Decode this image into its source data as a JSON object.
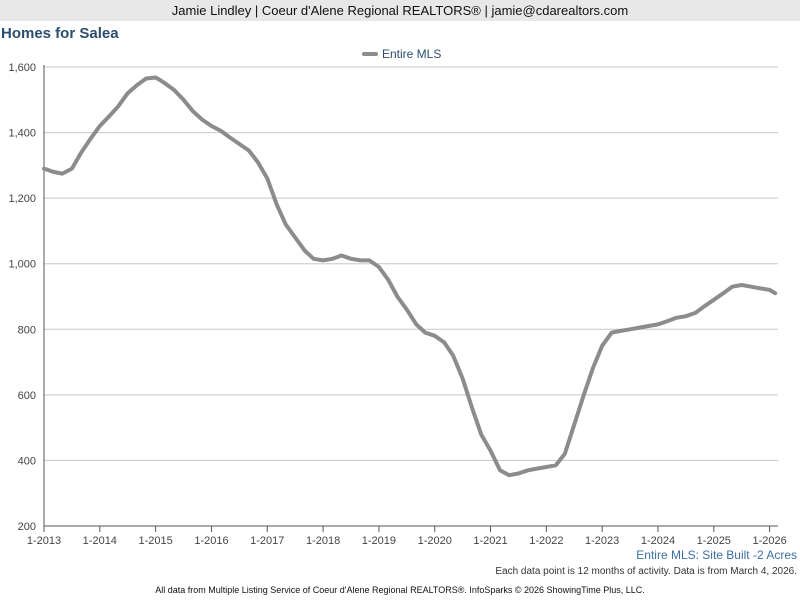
{
  "header": {
    "text": "Jamie Lindley | Coeur d'Alene Regional REALTORS® | jamie@cdarealtors.com"
  },
  "chart_data": {
    "type": "line",
    "title": "Homes for Salea",
    "xlabel": "",
    "ylabel": "",
    "ylim": [
      200,
      1600
    ],
    "xlim": [
      2013.0,
      2026.15
    ],
    "x_ticks": [
      2013,
      2014,
      2015,
      2016,
      2017,
      2018,
      2019,
      2020,
      2021,
      2022,
      2023,
      2024,
      2025,
      2026
    ],
    "x_tick_labels": [
      "1-2013",
      "1-2014",
      "1-2015",
      "1-2016",
      "1-2017",
      "1-2018",
      "1-2019",
      "1-2020",
      "1-2021",
      "1-2022",
      "1-2023",
      "1-2024",
      "1-2025",
      "1-2026"
    ],
    "y_ticks": [
      200,
      400,
      600,
      800,
      1000,
      1200,
      1400,
      1600
    ],
    "y_tick_labels": [
      "200",
      "400",
      "600",
      "800",
      "1,000",
      "1,200",
      "1,400",
      "1,600"
    ],
    "grid": true,
    "legend_position": "top-center",
    "series": [
      {
        "name": "Entire MLS",
        "color": "#8c8c8c",
        "x": [
          2013.0,
          2013.17,
          2013.33,
          2013.5,
          2013.67,
          2013.83,
          2014.0,
          2014.17,
          2014.33,
          2014.5,
          2014.67,
          2014.83,
          2015.0,
          2015.08,
          2015.17,
          2015.33,
          2015.5,
          2015.67,
          2015.83,
          2016.0,
          2016.17,
          2016.33,
          2016.5,
          2016.67,
          2016.83,
          2017.0,
          2017.17,
          2017.33,
          2017.5,
          2017.67,
          2017.83,
          2018.0,
          2018.17,
          2018.33,
          2018.5,
          2018.67,
          2018.83,
          2019.0,
          2019.17,
          2019.33,
          2019.5,
          2019.67,
          2019.83,
          2020.0,
          2020.17,
          2020.33,
          2020.5,
          2020.67,
          2020.83,
          2021.0,
          2021.17,
          2021.33,
          2021.5,
          2021.67,
          2021.83,
          2022.0,
          2022.17,
          2022.33,
          2022.5,
          2022.67,
          2022.83,
          2023.0,
          2023.17,
          2023.33,
          2023.5,
          2023.67,
          2023.83,
          2024.0,
          2024.17,
          2024.33,
          2024.5,
          2024.67,
          2024.83,
          2025.0,
          2025.17,
          2025.33,
          2025.5,
          2025.67,
          2025.83,
          2026.0,
          2026.1
        ],
        "values": [
          1290,
          1280,
          1275,
          1290,
          1340,
          1380,
          1420,
          1450,
          1480,
          1520,
          1545,
          1565,
          1568,
          1560,
          1550,
          1530,
          1500,
          1465,
          1440,
          1420,
          1405,
          1385,
          1365,
          1345,
          1310,
          1260,
          1180,
          1120,
          1080,
          1040,
          1015,
          1010,
          1015,
          1025,
          1015,
          1010,
          1010,
          990,
          950,
          900,
          860,
          815,
          790,
          780,
          760,
          720,
          650,
          560,
          480,
          430,
          370,
          355,
          360,
          370,
          375,
          380,
          385,
          420,
          510,
          600,
          680,
          750,
          790,
          795,
          800,
          805,
          810,
          815,
          825,
          835,
          840,
          850,
          870,
          890,
          910,
          930,
          935,
          930,
          925,
          920,
          910
        ]
      }
    ]
  },
  "notes": {
    "series_description": "Entire MLS: Site Built -2 Acres",
    "data_note": "Each data point is 12 months of activity. Data is from March 4, 2026.",
    "footer": "All data from Multiple Listing Service of Coeur d'Alene Regional REALTORS®. InfoSparks © 2026 ShowingTime Plus, LLC."
  }
}
